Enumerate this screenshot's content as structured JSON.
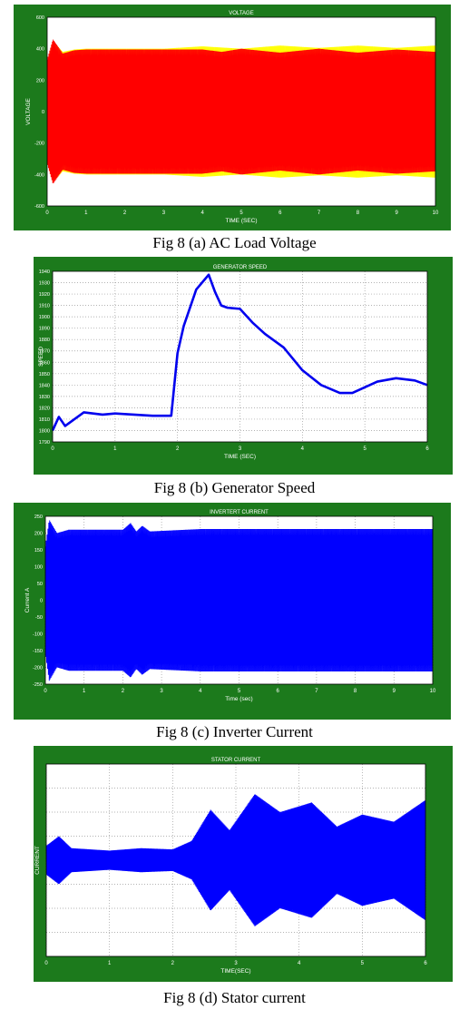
{
  "charts": [
    {
      "caption": "Fig 8 (a) AC Load Voltage"
    },
    {
      "caption": "Fig  8 (b) Generator Speed"
    },
    {
      "caption": "Fig 8 (c) Inverter Current"
    },
    {
      "caption": "Fig 8 (d) Stator current"
    }
  ],
  "chart_data": [
    {
      "type": "line",
      "title": "VOLTAGE",
      "xlabel": "TIME (SEC)",
      "ylabel": "VOLTAGE",
      "xlim": [
        0,
        10
      ],
      "ylim": [
        -600,
        600
      ],
      "x_ticks": [
        "0",
        "1",
        "2",
        "3",
        "4",
        "5",
        "6",
        "7",
        "8",
        "9",
        "10"
      ],
      "y_ticks": [
        "-600",
        "-400",
        "-200",
        "0",
        "200",
        "400",
        "600"
      ],
      "grid": false,
      "colors": {
        "frame": "#1c7a1c",
        "plot_bg": "#ffffff",
        "series": [
          "#ffff00",
          "#ff0000"
        ]
      },
      "series": [
        {
          "style": "oscillating-envelope",
          "color": "#ffff00",
          "envelope_amplitude": [
            [
              0,
              330
            ],
            [
              0.15,
              450
            ],
            [
              0.4,
              380
            ],
            [
              0.7,
              395
            ],
            [
              1,
              400
            ],
            [
              3,
              400
            ],
            [
              4,
              415
            ],
            [
              5,
              400
            ],
            [
              6,
              420
            ],
            [
              7,
              405
            ],
            [
              8,
              420
            ],
            [
              9,
              405
            ],
            [
              10,
              420
            ]
          ]
        },
        {
          "style": "oscillating-envelope",
          "color": "#ff0000",
          "envelope_amplitude": [
            [
              0,
              330
            ],
            [
              0.15,
              460
            ],
            [
              0.4,
              370
            ],
            [
              0.7,
              390
            ],
            [
              1,
              395
            ],
            [
              4,
              395
            ],
            [
              4.5,
              380
            ],
            [
              5,
              400
            ],
            [
              6,
              375
            ],
            [
              7,
              400
            ],
            [
              8,
              375
            ],
            [
              9,
              395
            ],
            [
              10,
              380
            ]
          ]
        }
      ]
    },
    {
      "type": "line",
      "title": "GENERATOR SPEED",
      "xlabel": "TIME (SEC)",
      "ylabel": "SPEED",
      "xlim": [
        0,
        6
      ],
      "ylim": [
        1790,
        1940
      ],
      "x_ticks": [
        "0",
        "1",
        "2",
        "3",
        "4",
        "5",
        "6"
      ],
      "y_ticks": [
        "1790",
        "1800",
        "1810",
        "1820",
        "1830",
        "1840",
        "1850",
        "1860",
        "1870",
        "1880",
        "1890",
        "1900",
        "1910",
        "1920",
        "1930",
        "1940"
      ],
      "grid": true,
      "colors": {
        "frame": "#1c7a1c",
        "plot_bg": "#ffffff",
        "series": [
          "#0000ee"
        ]
      },
      "series": [
        {
          "x": [
            0,
            0.1,
            0.2,
            0.3,
            0.5,
            0.8,
            1.0,
            1.3,
            1.6,
            1.9,
            2.0,
            2.1,
            2.3,
            2.5,
            2.6,
            2.7,
            2.8,
            3.0,
            3.2,
            3.4,
            3.7,
            4.0,
            4.3,
            4.6,
            4.8,
            5.0,
            5.2,
            5.5,
            5.8,
            6.0
          ],
          "y": [
            1800,
            1812,
            1804,
            1808,
            1816,
            1814,
            1815,
            1814,
            1813,
            1813,
            1868,
            1892,
            1924,
            1937,
            1922,
            1910,
            1908,
            1907,
            1895,
            1885,
            1873,
            1853,
            1840,
            1833,
            1833,
            1838,
            1843,
            1846,
            1844,
            1840
          ]
        }
      ]
    },
    {
      "type": "line",
      "title": "INVERTERT CURRENT",
      "xlabel": "Time (sec)",
      "ylabel": "Current  A",
      "xlim": [
        0,
        10
      ],
      "ylim": [
        -250,
        250
      ],
      "x_ticks": [
        "0",
        "1",
        "2",
        "3",
        "4",
        "5",
        "6",
        "7",
        "8",
        "9",
        "10"
      ],
      "y_ticks": [
        "-250",
        "-200",
        "-150",
        "-100",
        "-50",
        "0",
        "50",
        "100",
        "150",
        "200",
        "250"
      ],
      "grid": true,
      "colors": {
        "frame": "#1c7a1c",
        "plot_bg": "#ffffff",
        "series": [
          "#0000ff"
        ]
      },
      "series": [
        {
          "style": "oscillating-envelope",
          "color": "#0000ff",
          "envelope_amplitude": [
            [
              0,
              160
            ],
            [
              0.1,
              240
            ],
            [
              0.3,
              200
            ],
            [
              0.6,
              210
            ],
            [
              2,
              210
            ],
            [
              2.2,
              230
            ],
            [
              2.35,
              205
            ],
            [
              2.5,
              222
            ],
            [
              2.7,
              205
            ],
            [
              4,
              212
            ],
            [
              10,
              212
            ]
          ]
        }
      ]
    },
    {
      "type": "line",
      "title": "STATOR CURRENT",
      "xlabel": "TIME(SEC)",
      "ylabel": "CURRENT",
      "xlim": [
        0,
        6
      ],
      "ylim": [
        -8,
        8
      ],
      "x_ticks": [
        "0",
        "1",
        "2",
        "3",
        "4",
        "5",
        "6"
      ],
      "y_ticks": [],
      "grid": true,
      "colors": {
        "frame": "#1c7a1c",
        "plot_bg": "#ffffff",
        "series": [
          "#0000ff"
        ]
      },
      "series": [
        {
          "style": "oscillating-envelope",
          "color": "#0000ff",
          "envelope_amplitude": [
            [
              0,
              1.2
            ],
            [
              0.2,
              2.0
            ],
            [
              0.4,
              1.0
            ],
            [
              1.0,
              0.8
            ],
            [
              1.5,
              1.0
            ],
            [
              2.0,
              0.9
            ],
            [
              2.3,
              1.6
            ],
            [
              2.6,
              4.2
            ],
            [
              2.9,
              2.5
            ],
            [
              3.3,
              5.5
            ],
            [
              3.7,
              4.0
            ],
            [
              4.2,
              4.8
            ],
            [
              4.6,
              2.8
            ],
            [
              5.0,
              3.8
            ],
            [
              5.5,
              3.2
            ],
            [
              6.0,
              5.0
            ]
          ]
        }
      ]
    }
  ]
}
